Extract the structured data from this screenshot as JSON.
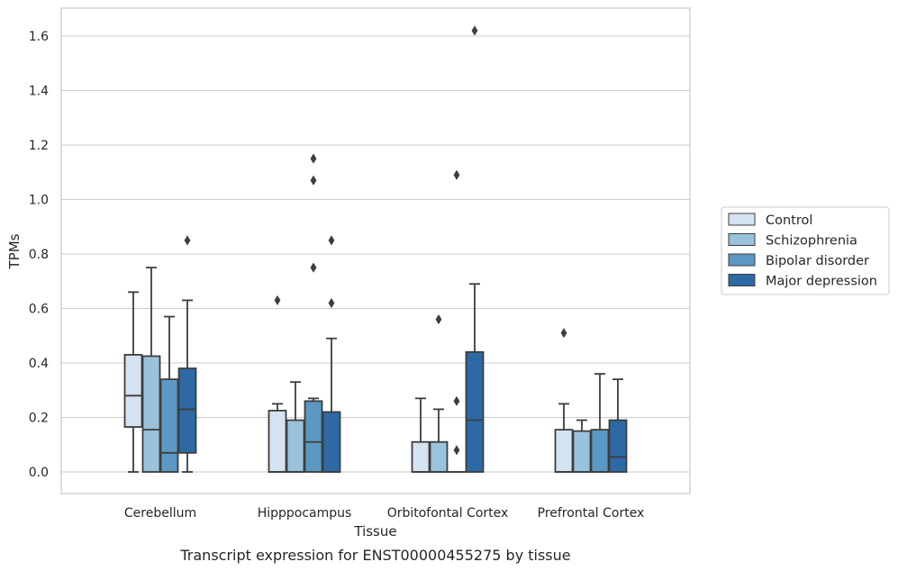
{
  "caption": "Transcript expression for ENST00000455275 by tissue",
  "chart_data": {
    "type": "box",
    "xlabel": "Tissue",
    "ylabel": "TPMs",
    "ylim": [
      -0.08,
      1.7
    ],
    "yticks": [
      0.0,
      0.2,
      0.4,
      0.6,
      0.8,
      1.0,
      1.2,
      1.4,
      1.6
    ],
    "grid": "horizontal",
    "legend_position": "right",
    "categories": [
      "Cerebellum",
      "Hipppocampus",
      "Orbitofontal Cortex",
      "Prefrontal Cortex"
    ],
    "series": [
      {
        "name": "Control",
        "color": "#d4e3f2",
        "boxes": [
          {
            "whisker_low": 0.0,
            "q1": 0.165,
            "median": 0.28,
            "q3": 0.43,
            "whisker_high": 0.66,
            "outliers": []
          },
          {
            "whisker_low": 0.0,
            "q1": 0.0,
            "median": 0.0,
            "q3": 0.225,
            "whisker_high": 0.25,
            "outliers": [
              0.63
            ]
          },
          {
            "whisker_low": 0.0,
            "q1": 0.0,
            "median": 0.0,
            "q3": 0.11,
            "whisker_high": 0.27,
            "outliers": []
          },
          {
            "whisker_low": 0.0,
            "q1": 0.0,
            "median": 0.0,
            "q3": 0.155,
            "whisker_high": 0.25,
            "outliers": [
              0.51
            ]
          }
        ]
      },
      {
        "name": "Schizophrenia",
        "color": "#99c2dc",
        "boxes": [
          {
            "whisker_low": 0.0,
            "q1": 0.0,
            "median": 0.155,
            "q3": 0.425,
            "whisker_high": 0.75,
            "outliers": []
          },
          {
            "whisker_low": 0.0,
            "q1": 0.0,
            "median": 0.0,
            "q3": 0.19,
            "whisker_high": 0.33,
            "outliers": []
          },
          {
            "whisker_low": 0.0,
            "q1": 0.0,
            "median": 0.0,
            "q3": 0.11,
            "whisker_high": 0.23,
            "outliers": [
              0.56
            ]
          },
          {
            "whisker_low": 0.0,
            "q1": 0.0,
            "median": 0.0,
            "q3": 0.15,
            "whisker_high": 0.19,
            "outliers": []
          }
        ]
      },
      {
        "name": "Bipolar disorder",
        "color": "#5b98c4",
        "boxes": [
          {
            "whisker_low": 0.0,
            "q1": 0.0,
            "median": 0.07,
            "q3": 0.34,
            "whisker_high": 0.57,
            "outliers": []
          },
          {
            "whisker_low": 0.0,
            "q1": 0.0,
            "median": 0.11,
            "q3": 0.26,
            "whisker_high": 0.27,
            "outliers": [
              0.75,
              1.07,
              1.15
            ]
          },
          {
            "whisker_low": 0.0,
            "q1": 0.0,
            "median": 0.0,
            "q3": 0.0,
            "whisker_high": 0.0,
            "outliers": [
              0.08,
              0.26,
              1.09
            ]
          },
          {
            "whisker_low": 0.0,
            "q1": 0.0,
            "median": 0.0,
            "q3": 0.155,
            "whisker_high": 0.36,
            "outliers": []
          }
        ]
      },
      {
        "name": "Major depression",
        "color": "#2d69a5",
        "boxes": [
          {
            "whisker_low": 0.0,
            "q1": 0.07,
            "median": 0.23,
            "q3": 0.38,
            "whisker_high": 0.63,
            "outliers": [
              0.85
            ]
          },
          {
            "whisker_low": 0.0,
            "q1": 0.0,
            "median": 0.0,
            "q3": 0.22,
            "whisker_high": 0.49,
            "outliers": [
              0.62,
              0.85
            ]
          },
          {
            "whisker_low": 0.0,
            "q1": 0.0,
            "median": 0.19,
            "q3": 0.44,
            "whisker_high": 0.69,
            "outliers": [
              1.62
            ]
          },
          {
            "whisker_low": 0.0,
            "q1": 0.0,
            "median": 0.055,
            "q3": 0.19,
            "whisker_high": 0.34,
            "outliers": []
          }
        ]
      }
    ]
  }
}
